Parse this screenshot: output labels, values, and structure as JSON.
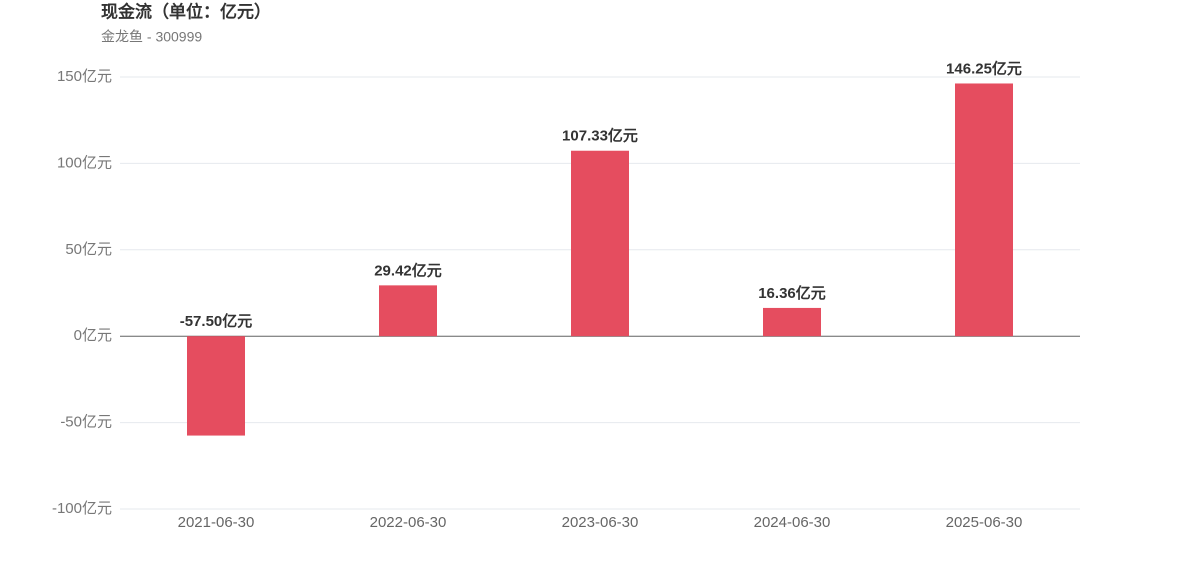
{
  "chart_data": {
    "type": "bar",
    "title": "现金流（单位：亿元）",
    "subtitle": "金龙鱼 - 300999",
    "categories": [
      "2021-06-30",
      "2022-06-30",
      "2023-06-30",
      "2024-06-30",
      "2025-06-30"
    ],
    "values": [
      -57.5,
      29.42,
      107.33,
      16.36,
      146.25
    ],
    "value_labels": [
      "-57.50亿元",
      "29.42亿元",
      "107.33亿元",
      "16.36亿元",
      "146.25亿元"
    ],
    "color": "#e54d5f",
    "ylim": [
      -100,
      150
    ],
    "yticks": [
      {
        "value": -100,
        "label": "-100亿元"
      },
      {
        "value": -50,
        "label": "-50亿元"
      },
      {
        "value": 0,
        "label": "0亿元"
      },
      {
        "value": 50,
        "label": "50亿元"
      },
      {
        "value": 100,
        "label": "100亿元"
      },
      {
        "value": 150,
        "label": "150亿元"
      }
    ],
    "grid": true
  }
}
